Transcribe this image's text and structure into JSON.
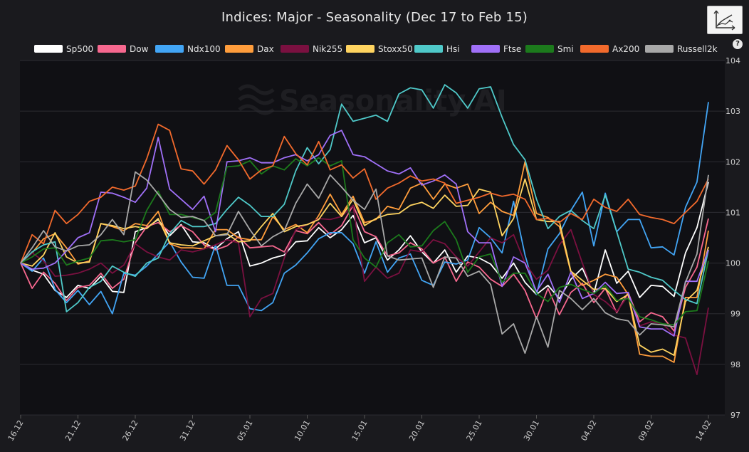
{
  "header": {
    "title": "Indices: Major - Seasonality (Dec 17 to Feb 15)",
    "chart_type_button_icon": "chart-type-icon",
    "help_label": "?"
  },
  "watermark": "Seasonality.AI",
  "colors": {
    "background": "#1a1a1e",
    "plot_background": "#0f0f14",
    "grid": "#2c2c32"
  },
  "chart_data": {
    "type": "line",
    "title": "Indices: Major - Seasonality (Dec 17 to Feb 15)",
    "ylim": [
      97,
      104
    ],
    "yticks": [
      97,
      98,
      99,
      100,
      101,
      102,
      103,
      104
    ],
    "xticks": [
      "16.12",
      "21.12",
      "26.12",
      "31.12",
      "05.01",
      "10.01",
      "15.01",
      "20.01",
      "25.01",
      "30.01",
      "04.02",
      "09.02",
      "14.02"
    ],
    "x_range": [
      0,
      60
    ],
    "grid": true,
    "legend_position": "top",
    "series": [
      {
        "name": "Sp500",
        "color": "#ffffff",
        "values": [
          100.0,
          99.86,
          99.78,
          99.46,
          99.32,
          99.56,
          99.5,
          99.74,
          99.44,
          99.42,
          100.62,
          100.7,
          100.86,
          100.54,
          100.76,
          100.42,
          100.4,
          100.28,
          100.48,
          100.62,
          99.94,
          100.0,
          100.1,
          100.16,
          100.42,
          100.44,
          100.7,
          100.5,
          100.66,
          100.94,
          100.4,
          100.5,
          100.06,
          100.26,
          100.54,
          100.22,
          100.0,
          100.26,
          99.82,
          100.14,
          100.1,
          99.98,
          99.7,
          100.0,
          99.62,
          99.38,
          99.56,
          99.3,
          99.68,
          99.9,
          99.4,
          100.26,
          99.6,
          99.84,
          99.32,
          99.56,
          99.54,
          99.34,
          100.2,
          100.7,
          101.6
        ]
      },
      {
        "name": "Dow",
        "color": "#f7688f",
        "values": [
          100.0,
          99.5,
          99.82,
          99.6,
          99.26,
          99.52,
          99.56,
          99.8,
          99.5,
          99.68,
          100.4,
          100.72,
          100.8,
          100.62,
          100.74,
          100.62,
          100.36,
          100.26,
          100.34,
          100.52,
          100.3,
          100.32,
          100.34,
          100.22,
          100.64,
          100.58,
          100.8,
          100.56,
          100.74,
          101.14,
          100.62,
          100.52,
          100.14,
          100.2,
          100.4,
          100.28,
          100.0,
          100.12,
          99.64,
          100.02,
          99.92,
          99.68,
          99.54,
          99.78,
          99.46,
          98.9,
          99.5,
          98.98,
          99.42,
          99.6,
          99.22,
          99.5,
          99.02,
          99.42,
          98.84,
          99.02,
          98.94,
          98.66,
          99.52,
          99.92,
          100.88
        ]
      },
      {
        "name": "Ndx100",
        "color": "#42a5f5",
        "values": [
          100.0,
          99.84,
          100.1,
          99.48,
          99.22,
          99.46,
          99.18,
          99.44,
          99.0,
          99.8,
          99.76,
          99.94,
          100.18,
          100.42,
          100.02,
          99.72,
          99.7,
          100.36,
          99.56,
          99.56,
          99.1,
          99.06,
          99.22,
          99.8,
          99.96,
          100.2,
          100.48,
          100.6,
          100.6,
          100.38,
          99.8,
          100.42,
          99.82,
          100.1,
          100.18,
          99.66,
          99.56,
          100.02,
          99.98,
          100.06,
          100.7,
          100.5,
          100.2,
          101.22,
          100.16,
          99.38,
          100.28,
          100.58,
          101.04,
          101.4,
          100.34,
          101.38,
          100.62,
          100.86,
          100.86,
          100.3,
          100.32,
          100.16,
          101.1,
          101.6,
          103.18
        ]
      },
      {
        "name": "Dax",
        "color": "#ff9d3c",
        "values": [
          100.0,
          100.2,
          100.48,
          100.58,
          100.3,
          99.98,
          100.04,
          100.78,
          100.72,
          100.64,
          100.78,
          100.74,
          101.02,
          100.38,
          100.3,
          100.3,
          100.28,
          100.66,
          100.66,
          100.5,
          100.46,
          100.46,
          100.92,
          100.66,
          100.76,
          100.6,
          100.94,
          101.36,
          100.96,
          101.32,
          100.8,
          100.86,
          101.12,
          101.06,
          101.48,
          101.58,
          101.26,
          101.56,
          101.48,
          101.56,
          100.98,
          101.2,
          101.02,
          100.94,
          102.0,
          100.98,
          100.9,
          100.72,
          99.82,
          99.56,
          99.66,
          99.78,
          99.72,
          99.38,
          98.2,
          98.16,
          98.16,
          98.04,
          99.32,
          99.32,
          100.64
        ]
      },
      {
        "name": "Nik255",
        "color": "#7a1040",
        "values": [
          100.0,
          100.2,
          100.04,
          99.74,
          99.76,
          99.8,
          99.88,
          100.0,
          99.8,
          99.96,
          100.38,
          100.22,
          100.12,
          100.06,
          100.26,
          100.22,
          100.28,
          100.36,
          100.46,
          100.4,
          98.94,
          99.3,
          99.4,
          100.1,
          100.66,
          100.76,
          100.88,
          100.86,
          100.92,
          101.14,
          99.64,
          99.92,
          99.7,
          99.8,
          100.26,
          100.22,
          100.46,
          100.38,
          100.12,
          99.94,
          100.22,
          100.5,
          100.4,
          100.56,
          100.0,
          99.68,
          99.86,
          100.36,
          100.66,
          100.0,
          99.38,
          99.24,
          99.04,
          99.36,
          98.76,
          98.84,
          98.8,
          98.58,
          98.52,
          97.8,
          99.12
        ]
      },
      {
        "name": "Stoxx50",
        "color": "#ffd460",
        "values": [
          100.0,
          99.94,
          100.16,
          100.6,
          100.12,
          100.0,
          100.02,
          100.78,
          100.74,
          100.68,
          100.72,
          100.68,
          100.88,
          100.4,
          100.36,
          100.34,
          100.44,
          100.54,
          100.58,
          100.42,
          100.44,
          100.72,
          100.98,
          100.62,
          100.72,
          100.76,
          100.86,
          101.18,
          100.92,
          101.26,
          100.74,
          100.88,
          100.96,
          100.98,
          101.14,
          101.2,
          101.08,
          101.34,
          101.12,
          101.14,
          101.46,
          101.4,
          100.54,
          100.88,
          101.66,
          100.86,
          100.82,
          100.82,
          99.84,
          99.66,
          99.48,
          99.5,
          99.24,
          99.38,
          98.38,
          98.24,
          98.3,
          98.18,
          99.24,
          99.46,
          100.32
        ]
      },
      {
        "name": "Hsi",
        "color": "#4fc9c9",
        "values": [
          100.0,
          100.22,
          100.36,
          100.42,
          99.04,
          99.22,
          99.52,
          99.64,
          99.94,
          99.82,
          99.74,
          100.0,
          100.1,
          100.58,
          100.84,
          100.72,
          100.72,
          100.78,
          101.06,
          101.3,
          101.14,
          100.92,
          100.92,
          101.16,
          101.82,
          102.28,
          101.96,
          102.24,
          103.14,
          102.8,
          102.86,
          102.92,
          102.8,
          103.34,
          103.46,
          103.42,
          103.06,
          103.52,
          103.36,
          103.06,
          103.44,
          103.48,
          102.88,
          102.34,
          102.04,
          101.26,
          100.68,
          100.92,
          101.04,
          100.84,
          100.68,
          101.34,
          100.62,
          99.88,
          99.82,
          99.72,
          99.66,
          99.46,
          99.28,
          99.2,
          100.26
        ]
      },
      {
        "name": "Ftse",
        "color": "#a070f8",
        "values": [
          100.0,
          99.88,
          99.9,
          100.0,
          100.24,
          100.5,
          100.6,
          101.4,
          101.38,
          101.3,
          101.2,
          101.48,
          102.48,
          101.46,
          101.26,
          101.06,
          101.32,
          100.62,
          102.0,
          102.02,
          102.08,
          101.98,
          101.98,
          102.08,
          102.14,
          102.02,
          102.14,
          102.52,
          102.62,
          102.14,
          102.1,
          101.96,
          101.82,
          101.76,
          101.88,
          101.54,
          101.62,
          101.74,
          101.56,
          100.62,
          100.4,
          100.4,
          99.54,
          100.12,
          100.0,
          99.44,
          99.78,
          99.22,
          99.82,
          99.3,
          99.4,
          99.62,
          99.4,
          99.42,
          98.74,
          98.7,
          98.7,
          98.56,
          99.64,
          99.64,
          100.26
        ]
      },
      {
        "name": "Smi",
        "color": "#1c7a1c",
        "values": [
          100.0,
          100.12,
          100.28,
          100.3,
          99.96,
          100.04,
          100.1,
          100.44,
          100.46,
          100.42,
          100.46,
          101.04,
          101.42,
          100.96,
          100.96,
          100.9,
          100.84,
          101.0,
          101.9,
          101.92,
          102.02,
          101.76,
          101.92,
          101.84,
          102.06,
          101.92,
          102.08,
          101.92,
          102.02,
          100.46,
          100.1,
          99.92,
          100.4,
          100.56,
          100.32,
          100.34,
          100.64,
          100.82,
          100.46,
          99.82,
          100.12,
          100.18,
          99.62,
          99.8,
          99.8,
          99.4,
          99.24,
          99.52,
          99.58,
          99.48,
          99.4,
          99.56,
          99.26,
          99.3,
          98.94,
          98.88,
          98.8,
          98.78,
          99.04,
          99.06,
          100.04
        ]
      },
      {
        "name": "Ax200",
        "color": "#f26a2c",
        "values": [
          100.0,
          100.56,
          100.38,
          101.04,
          100.78,
          100.96,
          101.22,
          101.3,
          101.5,
          101.44,
          101.52,
          102.06,
          102.74,
          102.62,
          101.86,
          101.82,
          101.56,
          101.84,
          102.32,
          102.04,
          101.66,
          101.84,
          101.92,
          102.5,
          102.16,
          101.94,
          102.4,
          101.84,
          101.94,
          101.68,
          101.86,
          101.26,
          101.48,
          101.58,
          101.72,
          101.62,
          101.66,
          101.58,
          101.18,
          101.24,
          101.3,
          101.38,
          101.32,
          101.36,
          101.26,
          100.86,
          100.88,
          100.8,
          100.98,
          100.86,
          101.26,
          101.1,
          101.02,
          101.26,
          100.96,
          100.9,
          100.86,
          100.78,
          101.0,
          101.22,
          101.66
        ]
      },
      {
        "name": "Russell2k",
        "color": "#a8a8a8",
        "values": [
          100.0,
          100.3,
          100.64,
          100.32,
          100.24,
          100.34,
          100.36,
          100.56,
          100.86,
          100.56,
          101.8,
          101.64,
          101.36,
          101.06,
          100.9,
          100.92,
          100.84,
          100.54,
          100.56,
          101.02,
          100.66,
          100.34,
          100.52,
          100.64,
          101.18,
          101.56,
          101.28,
          101.74,
          101.5,
          101.24,
          101.06,
          101.46,
          100.14,
          100.06,
          100.08,
          100.1,
          99.52,
          100.12,
          100.1,
          99.74,
          99.84,
          99.58,
          98.6,
          98.8,
          98.22,
          98.94,
          98.34,
          99.46,
          99.3,
          99.08,
          99.3,
          99.02,
          98.9,
          98.86,
          98.58,
          98.8,
          98.78,
          98.74,
          99.62,
          100.18,
          101.74
        ]
      }
    ]
  }
}
